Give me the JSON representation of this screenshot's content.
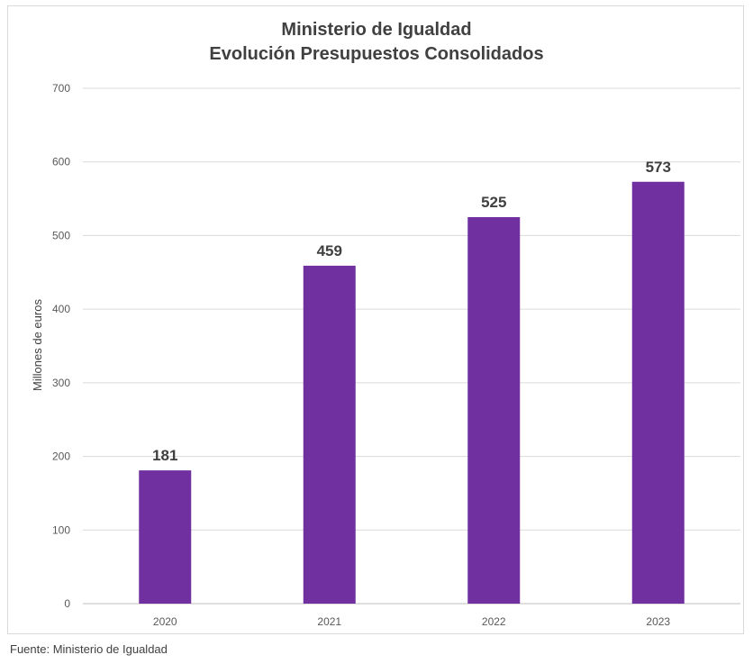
{
  "chart_data": {
    "type": "bar",
    "title_line1": "Ministerio de Igualdad",
    "title_line2": "Evolución Presupuestos Consolidados",
    "categories": [
      "2020",
      "2021",
      "2022",
      "2023"
    ],
    "values": [
      181,
      459,
      525,
      573
    ],
    "xlabel": "",
    "ylabel": "Millones de euros",
    "ylim": [
      0,
      700
    ],
    "yticks": [
      "0",
      "100",
      "200",
      "300",
      "400",
      "500",
      "600",
      "700"
    ],
    "grid": true,
    "legend": "none",
    "bar_color": "#7030a0"
  },
  "source": "Fuente: Ministerio de Igualdad"
}
